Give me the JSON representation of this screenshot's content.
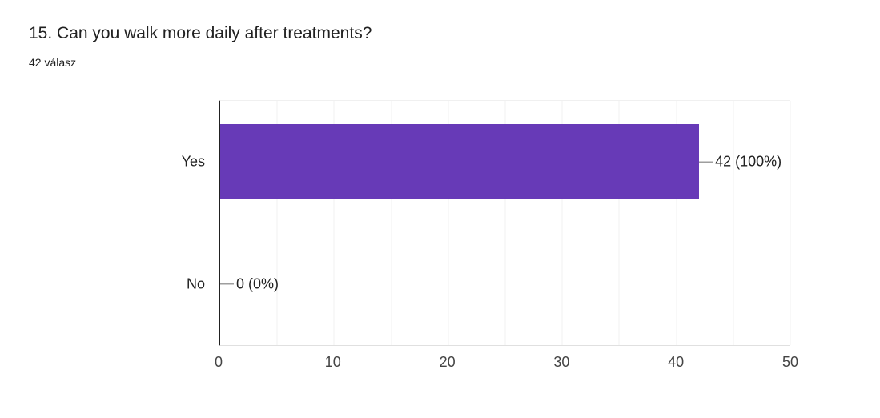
{
  "header": {
    "title": "15. Can you walk more daily after treatments?",
    "subtitle": "42 válasz"
  },
  "chart_data": {
    "type": "bar",
    "orientation": "horizontal",
    "title": "15. Can you walk more daily after treatments?",
    "subtitle": "42 válasz",
    "categories": [
      "Yes",
      "No"
    ],
    "values": [
      42,
      0
    ],
    "annotations": [
      "42 (100%)",
      "0 (0%)"
    ],
    "xlabel": "",
    "ylabel": "",
    "xlim": [
      0,
      50
    ],
    "xticks": [
      0,
      10,
      20,
      30,
      40,
      50
    ],
    "minor_gridline_step": 5,
    "grid": true,
    "legend": "none",
    "colors": {
      "bar": "#673ab7",
      "title_text": "#212121",
      "category_text": "#212121",
      "annotation_text": "#212121",
      "annotation_stem": "#9e9e9e",
      "axis_tick_text": "#444444",
      "axis_baseline": "#212121",
      "gridline": "#f0f0f0",
      "background": "#ffffff"
    }
  }
}
